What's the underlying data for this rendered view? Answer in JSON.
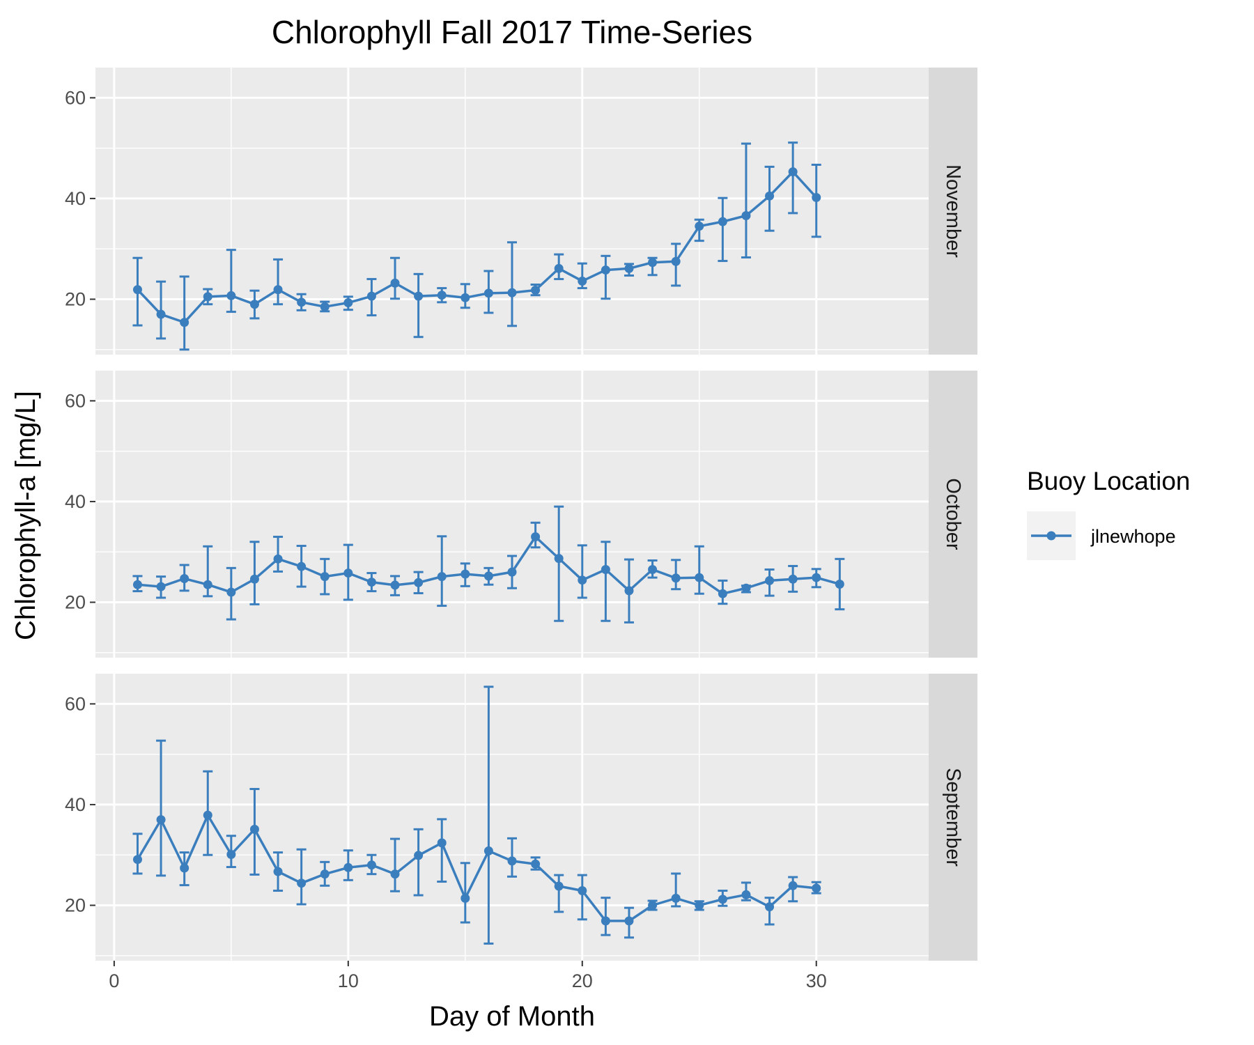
{
  "chart_data": {
    "type": "line",
    "title": "Chlorophyll Fall 2017 Time-Series",
    "xlabel": "Day of Month",
    "ylabel": "Chlorophyll-a [mg/L]",
    "xlim": [
      -0.8,
      34.8
    ],
    "ylim": [
      9,
      66
    ],
    "x_ticks": [
      0,
      10,
      20,
      30
    ],
    "y_ticks": [
      20,
      40,
      60
    ],
    "grid": true,
    "legend": {
      "title": "Buoy Location",
      "position": "right",
      "entries": [
        {
          "label": "jlnewhope",
          "color": "#3B7EBD"
        }
      ]
    },
    "colors": {
      "series": "#3B7EBD",
      "panel_bg": "#EBEBEB",
      "strip_bg": "#D9D9D9",
      "grid": "#FFFFFF"
    },
    "panels": [
      {
        "label": "November",
        "series": [
          {
            "name": "jlnewhope",
            "x": [
              1,
              2,
              3,
              4,
              5,
              6,
              7,
              8,
              9,
              10,
              11,
              12,
              13,
              14,
              15,
              16,
              17,
              18,
              19,
              20,
              21,
              22,
              23,
              24,
              25,
              26,
              27,
              28,
              29,
              30
            ],
            "y": [
              21.9,
              17.0,
              15.4,
              20.5,
              20.7,
              19.0,
              21.9,
              19.4,
              18.5,
              19.3,
              20.6,
              23.2,
              20.6,
              20.8,
              20.3,
              21.2,
              21.3,
              21.8,
              26.1,
              23.6,
              25.8,
              26.1,
              27.3,
              27.5,
              34.5,
              35.4,
              36.6,
              40.5,
              45.3,
              40.2
            ],
            "ymin": [
              14.8,
              12.2,
              10.0,
              19.0,
              17.5,
              16.2,
              19.0,
              17.8,
              17.6,
              17.9,
              16.8,
              20.1,
              12.5,
              19.4,
              18.3,
              17.3,
              14.7,
              20.8,
              24.0,
              22.2,
              20.1,
              24.7,
              24.8,
              22.7,
              31.6,
              27.6,
              28.3,
              33.6,
              37.1,
              32.4
            ],
            "ymax": [
              28.2,
              23.5,
              24.5,
              22.0,
              29.8,
              21.7,
              27.9,
              21.0,
              19.5,
              20.5,
              24.0,
              28.2,
              25.0,
              22.2,
              23.0,
              25.6,
              31.3,
              22.9,
              28.9,
              27.1,
              28.6,
              27.0,
              28.2,
              31.0,
              35.8,
              40.1,
              50.9,
              46.3,
              51.1,
              46.7
            ]
          }
        ]
      },
      {
        "label": "October",
        "series": [
          {
            "name": "jlnewhope",
            "x": [
              1,
              2,
              3,
              4,
              5,
              6,
              7,
              8,
              9,
              10,
              11,
              12,
              13,
              14,
              15,
              16,
              17,
              18,
              19,
              20,
              21,
              22,
              23,
              24,
              25,
              26,
              27,
              28,
              29,
              30,
              31
            ],
            "y": [
              23.5,
              23.1,
              24.7,
              23.5,
              22.0,
              24.6,
              28.6,
              27.1,
              25.1,
              25.8,
              24.0,
              23.4,
              23.9,
              25.1,
              25.6,
              25.2,
              26.0,
              33.0,
              28.7,
              24.4,
              26.5,
              22.3,
              26.5,
              24.8,
              24.9,
              21.7,
              22.8,
              24.3,
              24.6,
              24.9,
              23.6
            ],
            "ymin": [
              22.2,
              20.9,
              22.3,
              21.2,
              16.6,
              19.6,
              26.1,
              23.1,
              21.6,
              20.5,
              22.2,
              21.4,
              21.8,
              19.3,
              23.2,
              23.5,
              22.8,
              30.9,
              16.3,
              20.9,
              16.3,
              16.0,
              24.9,
              22.6,
              21.7,
              19.7,
              22.0,
              21.3,
              22.1,
              23.0,
              18.6
            ],
            "ymax": [
              25.2,
              25.1,
              27.4,
              31.1,
              26.8,
              32.0,
              33.0,
              31.2,
              28.6,
              31.4,
              25.8,
              25.2,
              26.0,
              33.1,
              27.7,
              26.8,
              29.2,
              35.8,
              39.0,
              31.3,
              32.0,
              28.5,
              28.3,
              28.4,
              31.1,
              24.3,
              23.3,
              26.5,
              27.2,
              26.6,
              28.6
            ]
          }
        ]
      },
      {
        "label": "September",
        "series": [
          {
            "name": "jlnewhope",
            "x": [
              1,
              2,
              3,
              4,
              5,
              6,
              7,
              8,
              9,
              10,
              11,
              12,
              13,
              14,
              15,
              16,
              17,
              18,
              19,
              20,
              21,
              22,
              23,
              24,
              25,
              26,
              27,
              28,
              29,
              30
            ],
            "y": [
              29.1,
              37.0,
              27.4,
              37.9,
              30.1,
              35.1,
              26.7,
              24.4,
              26.2,
              27.5,
              28.0,
              26.2,
              29.9,
              32.4,
              21.4,
              30.8,
              28.8,
              28.2,
              23.8,
              22.9,
              16.9,
              16.9,
              20.0,
              21.4,
              20.0,
              21.2,
              22.1,
              19.7,
              23.9,
              23.4
            ],
            "ymin": [
              26.3,
              25.9,
              24.0,
              30.0,
              27.6,
              26.1,
              22.9,
              20.2,
              23.9,
              25.0,
              26.2,
              22.8,
              22.0,
              24.7,
              16.6,
              12.4,
              25.7,
              27.1,
              18.7,
              17.2,
              14.1,
              13.6,
              19.1,
              19.8,
              19.1,
              19.9,
              21.0,
              16.2,
              20.8,
              22.4
            ],
            "ymax": [
              34.2,
              52.7,
              30.5,
              46.6,
              33.8,
              43.1,
              30.5,
              31.1,
              28.6,
              30.9,
              30.0,
              33.2,
              35.1,
              37.1,
              28.4,
              63.4,
              33.3,
              29.5,
              26.0,
              26.0,
              21.5,
              19.5,
              20.9,
              26.3,
              20.8,
              22.9,
              24.5,
              21.5,
              25.6,
              24.6
            ]
          }
        ]
      }
    ]
  }
}
